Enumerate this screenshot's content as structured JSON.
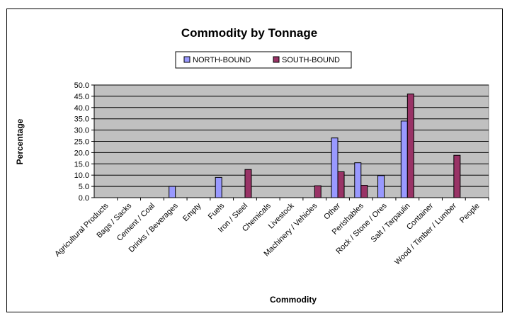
{
  "chart_data": {
    "type": "bar",
    "title": "Commodity by Tonnage",
    "xlabel": "Commodity",
    "ylabel": "Percentage",
    "ylim": [
      0,
      50
    ],
    "ytick_step": 5,
    "y_tick_format": "0.0",
    "grid": true,
    "legend_position": "top",
    "plot_background": "#C0C0C0",
    "categories": [
      "Agricultural Products",
      "Bags / Sacks",
      "Cement / Coal",
      "Drinks / Beverages",
      "Empty",
      "Fuels",
      "Iron / Steel",
      "Chemicals",
      "Livestock",
      "Machinery / Vehicles",
      "Other",
      "Perishables",
      "Rock / Stone / Ores",
      "Salt / Tarpaulin",
      "Container",
      "Wood / Timber / Lumber",
      "People"
    ],
    "series": [
      {
        "name": "NORTH-BOUND",
        "color": "#9999FF",
        "values": [
          0,
          0,
          0,
          5.0,
          0,
          9.0,
          0,
          0,
          0,
          0,
          26.5,
          15.5,
          9.8,
          34.0,
          0,
          0,
          0
        ]
      },
      {
        "name": "SOUTH-BOUND",
        "color": "#993366",
        "values": [
          0,
          0,
          0,
          0,
          0,
          0,
          12.5,
          0,
          0,
          5.3,
          11.5,
          5.5,
          0,
          46.0,
          0,
          18.8,
          0
        ]
      }
    ]
  }
}
